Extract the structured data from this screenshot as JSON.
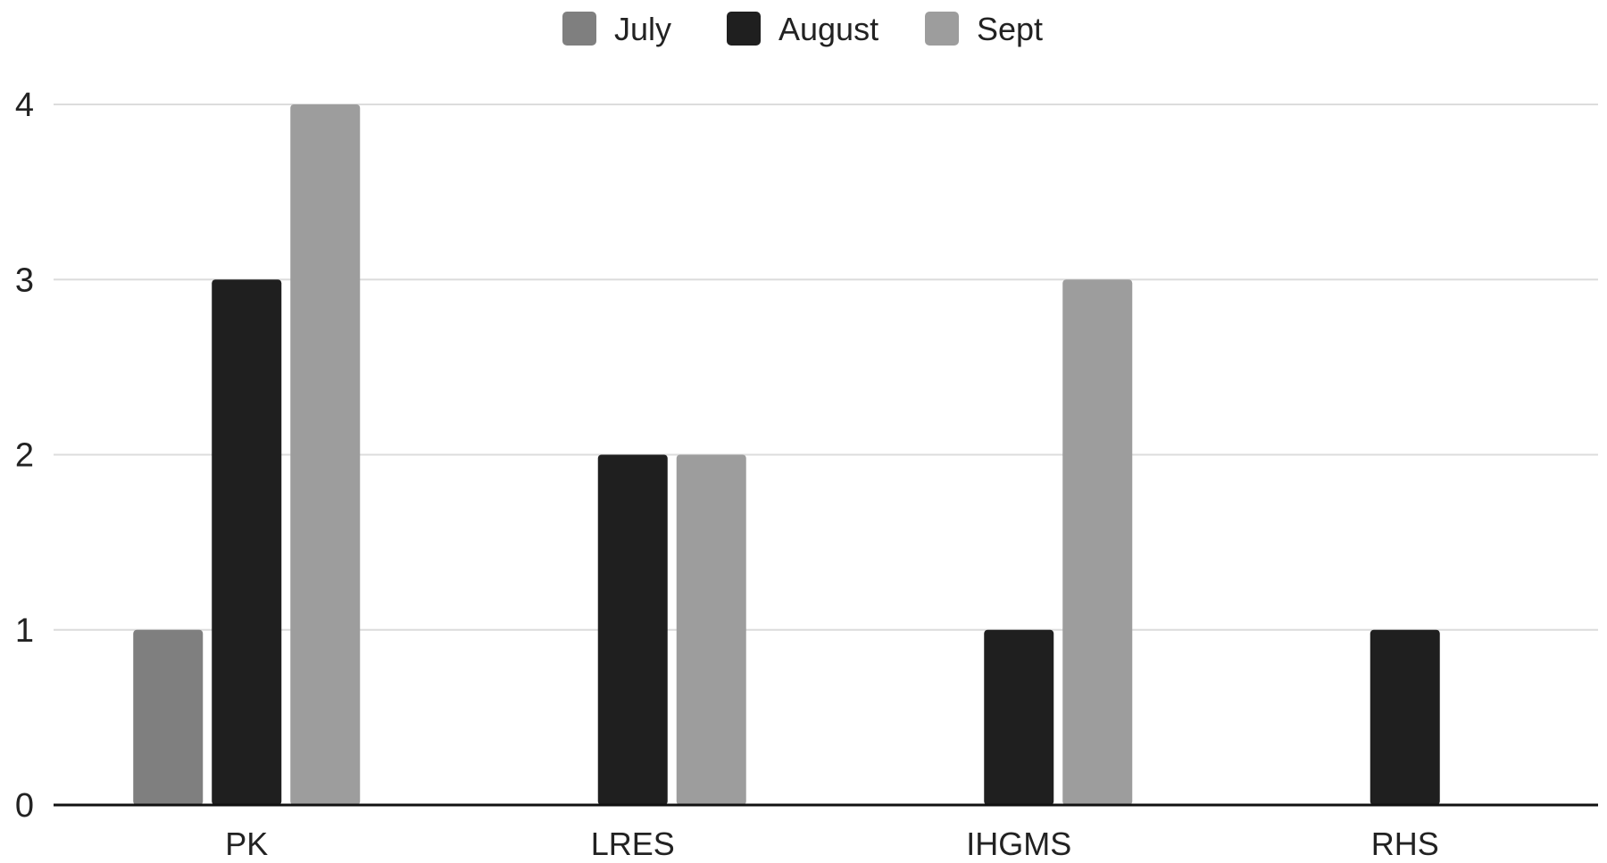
{
  "chart_data": {
    "type": "bar",
    "categories": [
      "PK",
      "LRES",
      "IHGMS",
      "RHS"
    ],
    "series": [
      {
        "name": "July",
        "values": [
          1,
          0,
          0,
          0
        ],
        "color": "#7f7f7f"
      },
      {
        "name": "August",
        "values": [
          3,
          2,
          1,
          1
        ],
        "color": "#1f1f1f"
      },
      {
        "name": "Sept",
        "values": [
          4,
          2,
          3,
          0
        ],
        "color": "#9d9d9d"
      }
    ],
    "title": "",
    "xlabel": "",
    "ylabel": "",
    "ylim": [
      0,
      4
    ],
    "yticks": [
      "0",
      "1",
      "2",
      "3",
      "4"
    ],
    "grid": true,
    "legend_position": "top-center"
  }
}
